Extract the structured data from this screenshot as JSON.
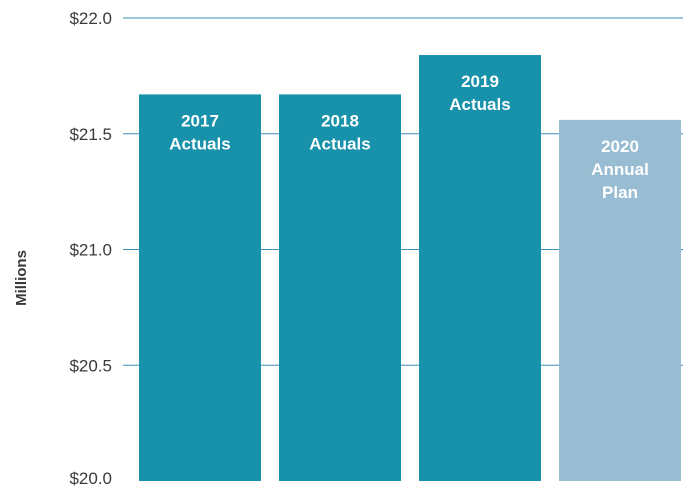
{
  "chart_data": {
    "type": "bar",
    "ylabel": "Millions",
    "ylim": [
      20.0,
      22.0
    ],
    "y_ticks": [
      {
        "value": 22.0,
        "label": "$22.0"
      },
      {
        "value": 21.5,
        "label": "$21.5"
      },
      {
        "value": 21.0,
        "label": "$21.0"
      },
      {
        "value": 20.5,
        "label": "$20.5"
      },
      {
        "value": 20.0,
        "label": "$20.0"
      }
    ],
    "grid": true,
    "bars": [
      {
        "label_lines": [
          "2017",
          "Actuals"
        ],
        "value": 21.67,
        "color": "#1891aa"
      },
      {
        "label_lines": [
          "2018",
          "Actuals"
        ],
        "value": 21.67,
        "color": "#1891aa"
      },
      {
        "label_lines": [
          "2019",
          "Actuals"
        ],
        "value": 21.84,
        "color": "#1891aa"
      },
      {
        "label_lines": [
          "2020",
          "Annual",
          "Plan"
        ],
        "value": 21.56,
        "color": "#98bdd3"
      }
    ]
  }
}
